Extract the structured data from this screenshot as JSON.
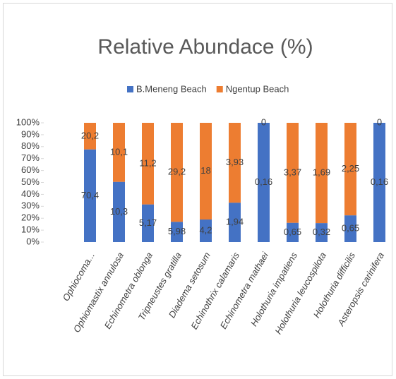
{
  "chart_data": {
    "type": "bar",
    "stack": "percent",
    "title": "Relative Abundace (%)",
    "categories": [
      "Ophiocoma...",
      "Ophiomastix annulosa",
      "Echinometra oblonga",
      "Tripneustes gratilla",
      "Diadema setosum",
      "Echinothrix calamaris",
      "Echinometra mathaei",
      "Holothuria impatiens",
      "Holothuria leucospilota",
      "Holothuria difficilis",
      "Asteropsis carinifera"
    ],
    "series": [
      {
        "name": "B.Meneng Beach",
        "color": "#4472c4",
        "values": [
          70.4,
          10.3,
          5.17,
          5.98,
          4.2,
          1.94,
          0.16,
          0.65,
          0.32,
          0.65,
          0.16
        ],
        "value_labels": [
          "70,4",
          "10,3",
          "5,17",
          "5,98",
          "4,2",
          "1,94",
          "0,16",
          "0,65",
          "0,32",
          "0,65",
          "0,16"
        ]
      },
      {
        "name": "Ngentup Beach",
        "color": "#ed7d31",
        "values": [
          20.2,
          10.1,
          11.2,
          29.2,
          18,
          3.93,
          0,
          3.37,
          1.69,
          2.25,
          0
        ],
        "value_labels": [
          "20,2",
          "10,1",
          "11,2",
          "29,2",
          "18",
          "3,93",
          "0",
          "3,37",
          "1,69",
          "2,25",
          "0"
        ]
      }
    ],
    "ylim": [
      0,
      100
    ],
    "yticks": [
      {
        "value": 0,
        "label": "0%"
      },
      {
        "value": 10,
        "label": "10%"
      },
      {
        "value": 20,
        "label": "20%"
      },
      {
        "value": 30,
        "label": "30%"
      },
      {
        "value": 40,
        "label": "40%"
      },
      {
        "value": 50,
        "label": "50%"
      },
      {
        "value": 60,
        "label": "60%"
      },
      {
        "value": 70,
        "label": "70%"
      },
      {
        "value": 80,
        "label": "80%"
      },
      {
        "value": 90,
        "label": "90%"
      },
      {
        "value": 100,
        "label": "100%"
      }
    ],
    "grid": false,
    "legend": "top"
  }
}
